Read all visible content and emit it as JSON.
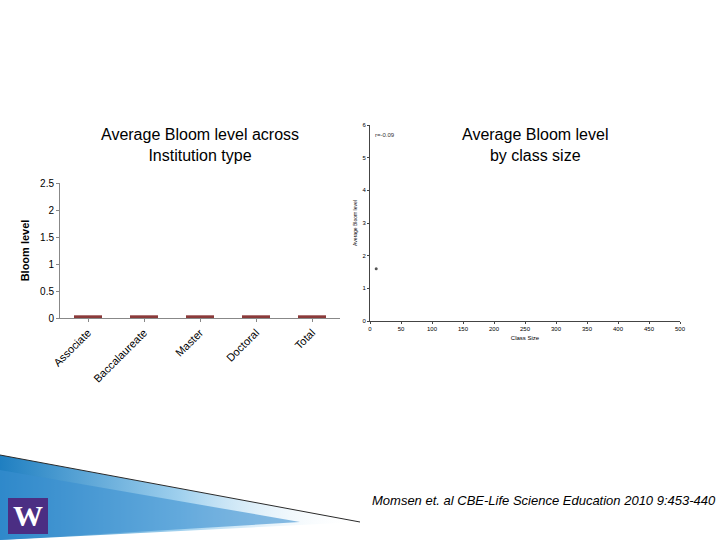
{
  "chart_data": [
    {
      "type": "bar",
      "title": "Average Bloom level across\nInstitution type",
      "y_label": "Bloom level",
      "categories": [
        "Associate",
        "Baccalaureate",
        "Master",
        "Doctoral",
        "Total"
      ],
      "values": [
        0.05,
        0.05,
        0.05,
        0.05,
        0.05
      ],
      "color": "#8b3a3a",
      "ylim": [
        0,
        2.5
      ],
      "yticks": [
        0,
        0.5,
        1,
        1.5,
        2,
        2.5
      ],
      "grid": false
    },
    {
      "type": "scatter",
      "title": "Average Bloom level\nby class size",
      "x_label": "Class Size",
      "y_label": "Average Bloom level",
      "x": [
        10
      ],
      "values": [
        1.6
      ],
      "color": "#555555",
      "marker": "circle",
      "xlim": [
        0,
        500
      ],
      "xticks": [
        0,
        50,
        100,
        150,
        200,
        250,
        300,
        350,
        400,
        450,
        500
      ],
      "ylim": [
        0,
        6
      ],
      "yticks": [
        0,
        1,
        2,
        3,
        4,
        5,
        6
      ],
      "grid": false,
      "annotations": [
        {
          "text": "r=-0.09",
          "x": 25,
          "y": 5.7
        }
      ]
    }
  ],
  "footer": {
    "citation": "Momsen et. al CBE-Life Science Education 2010 9:453-440",
    "logo": "W"
  }
}
